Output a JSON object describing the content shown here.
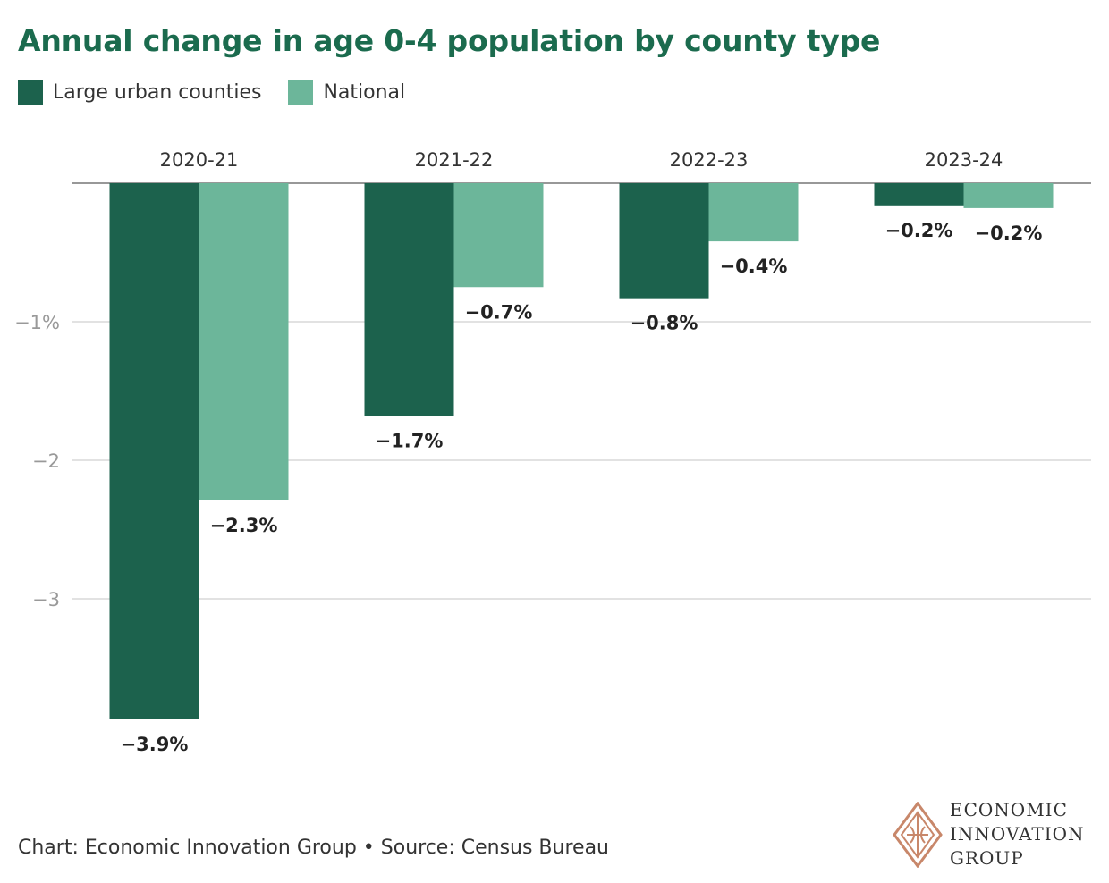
{
  "title": "Annual change in age 0-4 population by county type",
  "legend": [
    {
      "label": "Large urban counties",
      "color": "#1c624d"
    },
    {
      "label": "National",
      "color": "#6cb69a"
    }
  ],
  "footer": "Chart: Economic Innovation Group • Source: Census Bureau",
  "logo": {
    "line1": "ECONOMIC",
    "line2": "INNOVATION",
    "line3": "GROUP",
    "color": "#c8876a"
  },
  "colors": {
    "title": "#1b6b4e",
    "grid": "#d9d9d9",
    "axis_text": "#999999"
  },
  "chart_data": {
    "type": "bar",
    "title": "Annual change in age 0-4 population by county type",
    "categories": [
      "2020-21",
      "2021-22",
      "2022-23",
      "2023-24"
    ],
    "series": [
      {
        "name": "Large urban counties",
        "values": [
          -3.87,
          -1.68,
          -0.83,
          -0.16
        ],
        "labels": [
          "−3.9%",
          "−1.7%",
          "−0.8%",
          "−0.2%"
        ]
      },
      {
        "name": "National",
        "values": [
          -2.29,
          -0.75,
          -0.42,
          -0.18
        ],
        "labels": [
          "−2.3%",
          "−0.7%",
          "−0.4%",
          "−0.2%"
        ]
      }
    ],
    "ylim": [
      -4.05,
      0
    ],
    "yticks": [
      {
        "value": -1,
        "label": "−1%"
      },
      {
        "value": -2,
        "label": "−2"
      },
      {
        "value": -3,
        "label": "−3"
      }
    ],
    "xlabel": "",
    "ylabel": "",
    "legend_position": "top-left",
    "grid": true
  }
}
